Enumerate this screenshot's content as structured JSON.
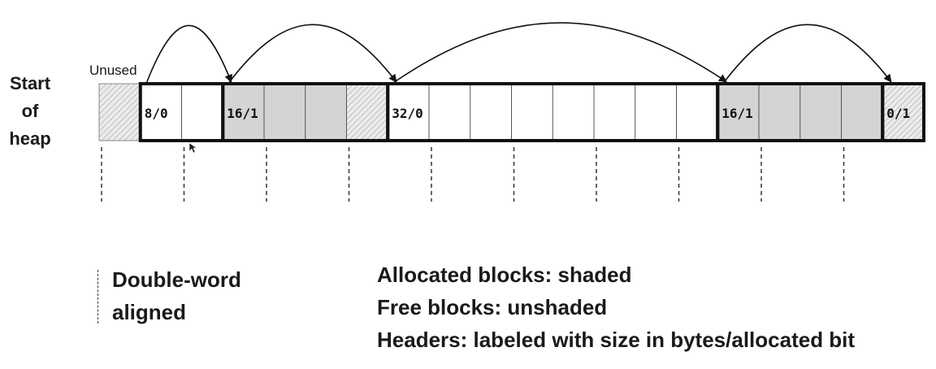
{
  "start_label": [
    "Start",
    "of",
    "heap"
  ],
  "unused_label": "Unused",
  "headers": [
    {
      "label": "8/0",
      "cell": 1
    },
    {
      "label": "16/1",
      "cell": 3
    },
    {
      "label": "32/0",
      "cell": 7
    },
    {
      "label": "16/1",
      "cell": 15
    },
    {
      "label": "0/1",
      "cell": 19
    }
  ],
  "cell_kinds": [
    "hatched",
    "header",
    "free",
    "header",
    "shaded",
    "shaded",
    "hatched",
    "header",
    "free",
    "free",
    "free",
    "free",
    "free",
    "free",
    "free",
    "header",
    "shaded",
    "shaded",
    "shaded",
    "header"
  ],
  "legend": {
    "double_word": [
      "Double-word",
      "aligned"
    ],
    "lines": [
      "Allocated blocks: shaded",
      "Free blocks: unshaded",
      "Headers: labeled with size in bytes/allocated bit"
    ]
  },
  "colors": {
    "shaded": "#d4d4d4",
    "free": "#ffffff",
    "hatch": "#bdbdbd",
    "stroke": "#111111"
  }
}
